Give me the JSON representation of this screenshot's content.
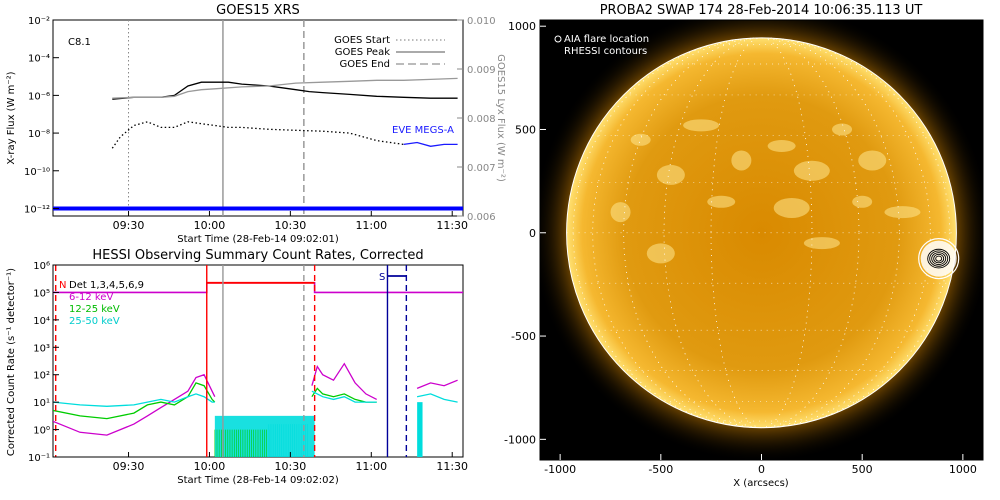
{
  "chart_data": [
    {
      "id": "goes",
      "type": "line",
      "title": "GOES15 XRS",
      "xlabel": "Start Time (28-Feb-14 09:02:01)",
      "ylabel": "X-ray Flux (W m⁻²)",
      "ylabel2": "GOES15 Lyx Flux (W m⁻²)",
      "annotation": "C8.1",
      "inline_label": "EVE MEGS-A",
      "xticks": [
        "09:30",
        "10:00",
        "10:30",
        "11:00",
        "11:30"
      ],
      "xtick_minutes": [
        28,
        58,
        88,
        118,
        148
      ],
      "xlim_minutes": [
        0,
        152
      ],
      "yticks_left": [
        "10⁻²",
        "10⁻⁴",
        "10⁻⁶",
        "10⁻⁸",
        "10⁻¹⁰",
        "10⁻¹²"
      ],
      "ytick_exponents": [
        -2,
        -4,
        -6,
        -8,
        -10,
        -12
      ],
      "ylim_log": [
        -12.4,
        -2
      ],
      "yticks_right": [
        "0.010",
        "0.009",
        "0.008",
        "0.007",
        "0.006"
      ],
      "yticks_right_values": [
        0.01,
        0.009,
        0.008,
        0.007,
        0.006
      ],
      "ylim_right": [
        0.006,
        0.01
      ],
      "legend": [
        {
          "label": "GOES Start",
          "style": "dotted"
        },
        {
          "label": "GOES Peak",
          "style": "solid"
        },
        {
          "label": "GOES End",
          "style": "dashed"
        }
      ],
      "markers_minutes": {
        "start": 28,
        "peak": 63,
        "end": 93
      },
      "series": [
        {
          "color": "#000000",
          "style": "solid",
          "x": [
            22,
            30,
            40,
            45,
            50,
            55,
            60,
            65,
            70,
            75,
            80,
            85,
            90,
            95,
            100,
            110,
            120,
            130,
            140,
            150
          ],
          "y": [
            -6.2,
            -6.1,
            -6.1,
            -6.0,
            -5.5,
            -5.3,
            -5.3,
            -5.3,
            -5.4,
            -5.45,
            -5.5,
            -5.6,
            -5.7,
            -5.8,
            -5.85,
            -5.95,
            -6.05,
            -6.1,
            -6.15,
            -6.15
          ]
        },
        {
          "color": "#999999",
          "style": "solid",
          "x": [
            22,
            30,
            40,
            45,
            50,
            55,
            60,
            70,
            80,
            90,
            100,
            110,
            120,
            130,
            140,
            150
          ],
          "y": [
            -6.15,
            -6.1,
            -6.1,
            -6.05,
            -5.8,
            -5.7,
            -5.65,
            -5.55,
            -5.5,
            -5.35,
            -5.3,
            -5.25,
            -5.2,
            -5.2,
            -5.15,
            -5.1
          ]
        },
        {
          "color": "#000000",
          "style": "dotted",
          "x": [
            22,
            25,
            30,
            35,
            40,
            45,
            50,
            55,
            60,
            65,
            70,
            80,
            90,
            100,
            110,
            120,
            130
          ],
          "y": [
            -8.8,
            -8.2,
            -7.6,
            -7.4,
            -7.7,
            -7.7,
            -7.4,
            -7.5,
            -7.6,
            -7.7,
            -7.7,
            -7.8,
            -7.85,
            -7.9,
            -8.0,
            -8.4,
            -8.6
          ]
        },
        {
          "color": "#1a1aff",
          "style": "solid",
          "x": [
            130,
            135,
            140,
            145,
            150
          ],
          "y": [
            -8.6,
            -8.5,
            -8.7,
            -8.6,
            -8.6
          ]
        },
        {
          "color": "#0000ff",
          "style": "thick",
          "x": [
            0,
            152
          ],
          "y": [
            -12.0,
            -12.0
          ]
        }
      ]
    },
    {
      "id": "hessi",
      "type": "line",
      "title": "HESSI Observing Summary Count Rates, Corrected",
      "xlabel": "Start Time (28-Feb-14 09:02:02)",
      "ylabel": "Corrected Count Rate (s⁻¹ detector⁻¹)",
      "xticks": [
        "09:30",
        "10:00",
        "10:30",
        "11:00",
        "11:30"
      ],
      "xtick_minutes": [
        28,
        58,
        88,
        118,
        148
      ],
      "xlim_minutes": [
        0,
        152
      ],
      "yticks": [
        "10⁶",
        "10⁵",
        "10⁴",
        "10³",
        "10²",
        "10¹",
        "10⁰",
        "10⁻¹"
      ],
      "ytick_exponents": [
        6,
        5,
        4,
        3,
        2,
        1,
        0,
        -1
      ],
      "ylim_log": [
        -1,
        6
      ],
      "legend": [
        {
          "label": "Det 1,3,4,5,6,9",
          "color": "#000000"
        },
        {
          "label": "6-12 keV",
          "color": "#cc00cc"
        },
        {
          "label": "12-25 keV",
          "color": "#00cc00"
        },
        {
          "label": "25-50 keV",
          "color": "#00dddd"
        }
      ],
      "flags": [
        {
          "label": "N",
          "color": "#ff0000",
          "x": 1
        },
        {
          "label": "S",
          "color": "#000099",
          "x": 124
        }
      ],
      "series": [
        {
          "name": "6-12 keV",
          "color": "#cc00cc",
          "x": [
            0,
            10,
            20,
            30,
            35,
            40,
            45,
            50,
            53,
            56,
            59,
            60
          ],
          "y": [
            0.3,
            -0.1,
            -0.2,
            0.2,
            0.5,
            0.8,
            1.1,
            1.4,
            1.9,
            2.0,
            1.4,
            1.2
          ]
        },
        {
          "name": "12-25 keV",
          "color": "#00cc00",
          "x": [
            0,
            10,
            20,
            30,
            35,
            40,
            45,
            50,
            53,
            56,
            59,
            60
          ],
          "y": [
            0.7,
            0.5,
            0.4,
            0.6,
            0.9,
            1.0,
            0.9,
            1.2,
            1.7,
            1.6,
            1.1,
            1.0
          ]
        },
        {
          "name": "25-50 keV",
          "color": "#00dddd",
          "x": [
            0,
            10,
            20,
            30,
            35,
            40,
            45,
            50,
            53,
            56,
            59,
            60
          ],
          "y": [
            1.0,
            0.9,
            0.85,
            0.9,
            1.0,
            1.1,
            1.0,
            1.2,
            1.3,
            1.2,
            1.0,
            1.0
          ]
        },
        {
          "name": "6-12 keV",
          "color": "#cc00cc",
          "x": [
            96,
            98,
            100,
            104,
            108,
            112,
            116,
            120
          ],
          "y": [
            1.6,
            2.3,
            2.0,
            1.8,
            2.4,
            1.7,
            1.3,
            1.1
          ]
        },
        {
          "name": "12-25 keV",
          "color": "#00cc00",
          "x": [
            96,
            98,
            100,
            104,
            108,
            112,
            116,
            120
          ],
          "y": [
            1.2,
            1.5,
            1.3,
            1.2,
            1.3,
            1.1,
            1.0,
            1.0
          ]
        },
        {
          "name": "25-50 keV",
          "color": "#00dddd",
          "x": [
            96,
            98,
            100,
            104,
            108,
            112,
            116,
            120
          ],
          "y": [
            1.4,
            1.3,
            1.2,
            1.1,
            1.2,
            1.0,
            1.0,
            1.0
          ]
        },
        {
          "name": "6-12 keV",
          "color": "#cc00cc",
          "x": [
            135,
            140,
            145,
            150
          ],
          "y": [
            1.5,
            1.7,
            1.6,
            1.8
          ]
        },
        {
          "name": "25-50 keV",
          "color": "#00dddd",
          "x": [
            135,
            140,
            145,
            150
          ],
          "y": [
            1.2,
            1.3,
            1.1,
            1.0
          ]
        },
        {
          "name": "attenuator",
          "color": "#cc00cc",
          "x": [
            0,
            57,
            57,
            97,
            97,
            112,
            135,
            152
          ],
          "y": [
            5.0,
            5.0,
            5.35,
            5.35,
            5.0,
            5.0,
            5.0,
            5.0
          ]
        }
      ],
      "vlines": [
        {
          "x": 1,
          "color": "#ff0000",
          "style": "dashed"
        },
        {
          "x": 57,
          "color": "#ff0000",
          "style": "solid"
        },
        {
          "x": 63,
          "color": "#999999",
          "style": "solid"
        },
        {
          "x": 93,
          "color": "#999999",
          "style": "dashed"
        },
        {
          "x": 97,
          "color": "#ff0000",
          "style": "dashed"
        },
        {
          "x": 124,
          "color": "#000099",
          "style": "solid"
        },
        {
          "x": 131,
          "color": "#000099",
          "style": "dashed"
        }
      ]
    },
    {
      "id": "swap",
      "type": "scatter",
      "title": "PROBA2 SWAP 174 28-Feb-2014 10:06:35.113 UT",
      "xlabel": "X (arcsecs)",
      "ylabel": "",
      "xticks": [
        "-1000",
        "-500",
        "0",
        "500",
        "1000"
      ],
      "xtick_values": [
        -1000,
        -500,
        0,
        500,
        1000
      ],
      "yticks": [
        "1000",
        "500",
        "0",
        "-500",
        "-1000"
      ],
      "ytick_values": [
        1000,
        500,
        0,
        -500,
        -1000
      ],
      "xlim": [
        -1100,
        1100
      ],
      "ylim": [
        -1100,
        1030
      ],
      "legend": [
        {
          "label": "AIA flare location",
          "marker": "circle-white"
        },
        {
          "label": "RHESSI contours",
          "marker": "circle-black"
        }
      ],
      "solar_radius_arcsec": 968,
      "flare_location": {
        "x": 880,
        "y": -125
      }
    }
  ],
  "colors": {
    "sun_core": "#f0a000",
    "sun_edge": "#b86800",
    "background": "#000000",
    "goes_long": "#000000",
    "goes_short": "#999999",
    "eve": "#0000ff"
  }
}
